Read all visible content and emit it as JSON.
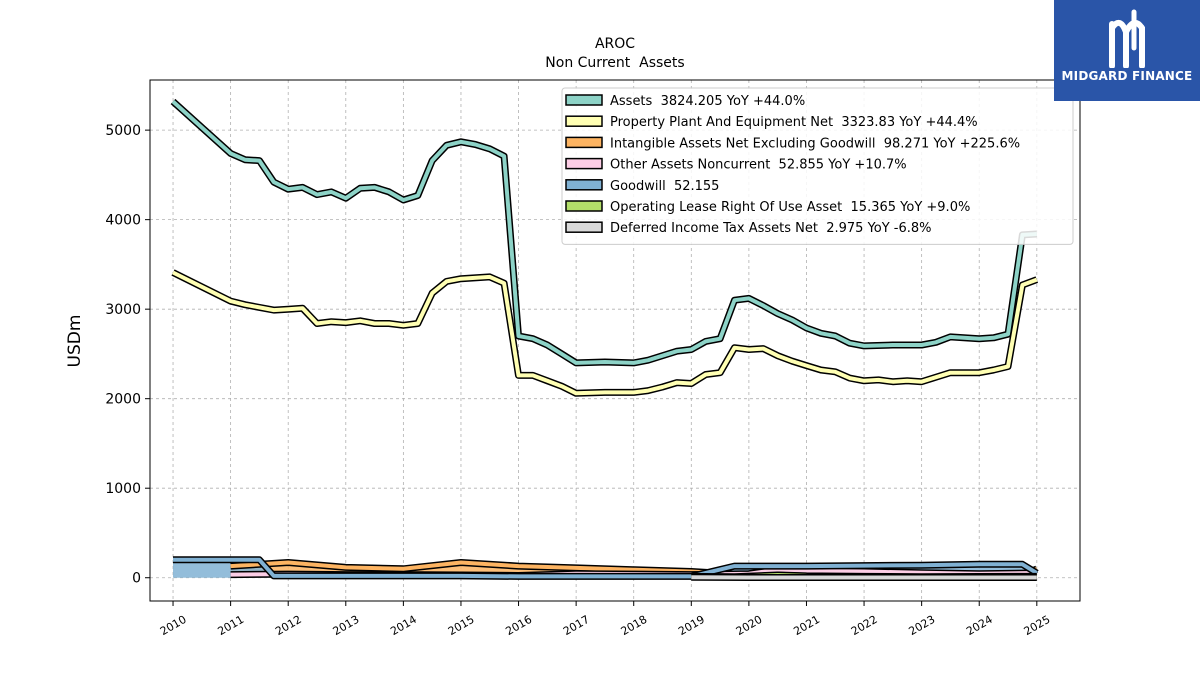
{
  "brand": {
    "logo_text": "MIDGARD FINANCE",
    "logo_color": "#2a55a8"
  },
  "chart_data": {
    "type": "line",
    "title": "AROC",
    "subtitle": "Non Current  Assets",
    "xlabel": "",
    "ylabel": "USDm",
    "xlim": [
      2009.6,
      2025.75
    ],
    "ylim": [
      -260,
      5560
    ],
    "yticks": [
      0,
      1000,
      2000,
      3000,
      4000,
      5000
    ],
    "xticks": [
      2010,
      2011,
      2012,
      2013,
      2014,
      2015,
      2016,
      2017,
      2018,
      2019,
      2020,
      2021,
      2022,
      2023,
      2024,
      2025
    ],
    "grid": true,
    "legend_position": "top-right",
    "series": [
      {
        "name": "Assets",
        "legend": "Assets  3824.205 YoY +44.0%",
        "color": "#8dd3c7",
        "points": [
          [
            2010.0,
            5320
          ],
          [
            2011.0,
            4740
          ],
          [
            2011.25,
            4670
          ],
          [
            2011.5,
            4660
          ],
          [
            2011.75,
            4420
          ],
          [
            2012.0,
            4340
          ],
          [
            2012.25,
            4360
          ],
          [
            2012.5,
            4280
          ],
          [
            2012.75,
            4310
          ],
          [
            2013.0,
            4240
          ],
          [
            2013.25,
            4350
          ],
          [
            2013.5,
            4360
          ],
          [
            2013.75,
            4310
          ],
          [
            2014.0,
            4220
          ],
          [
            2014.25,
            4270
          ],
          [
            2014.5,
            4660
          ],
          [
            2014.75,
            4830
          ],
          [
            2015.0,
            4870
          ],
          [
            2015.25,
            4840
          ],
          [
            2015.5,
            4790
          ],
          [
            2015.75,
            4710
          ],
          [
            2016.0,
            2700
          ],
          [
            2016.25,
            2670
          ],
          [
            2016.5,
            2600
          ],
          [
            2016.75,
            2500
          ],
          [
            2017.0,
            2400
          ],
          [
            2017.5,
            2410
          ],
          [
            2018.0,
            2400
          ],
          [
            2018.25,
            2430
          ],
          [
            2018.5,
            2480
          ],
          [
            2018.75,
            2530
          ],
          [
            2019.0,
            2550
          ],
          [
            2019.25,
            2640
          ],
          [
            2019.5,
            2670
          ],
          [
            2019.75,
            3100
          ],
          [
            2020.0,
            3120
          ],
          [
            2020.25,
            3040
          ],
          [
            2020.5,
            2950
          ],
          [
            2020.75,
            2880
          ],
          [
            2021.0,
            2790
          ],
          [
            2021.25,
            2730
          ],
          [
            2021.5,
            2700
          ],
          [
            2021.75,
            2620
          ],
          [
            2022.0,
            2590
          ],
          [
            2022.5,
            2600
          ],
          [
            2023.0,
            2600
          ],
          [
            2023.25,
            2630
          ],
          [
            2023.5,
            2690
          ],
          [
            2024.0,
            2670
          ],
          [
            2024.25,
            2680
          ],
          [
            2024.5,
            2720
          ],
          [
            2024.75,
            3830
          ],
          [
            2025.0,
            3840
          ]
        ]
      },
      {
        "name": "Property Plant And Equipment Net",
        "legend": "Property Plant And Equipment Net  3323.83 YoY +44.4%",
        "color": "#ffffb3",
        "points": [
          [
            2010.0,
            3410
          ],
          [
            2011.0,
            3090
          ],
          [
            2011.25,
            3050
          ],
          [
            2011.5,
            3020
          ],
          [
            2011.75,
            2990
          ],
          [
            2012.0,
            3000
          ],
          [
            2012.25,
            3010
          ],
          [
            2012.5,
            2840
          ],
          [
            2012.75,
            2860
          ],
          [
            2013.0,
            2850
          ],
          [
            2013.25,
            2870
          ],
          [
            2013.5,
            2840
          ],
          [
            2013.75,
            2840
          ],
          [
            2014.0,
            2820
          ],
          [
            2014.25,
            2840
          ],
          [
            2014.5,
            3180
          ],
          [
            2014.75,
            3310
          ],
          [
            2015.0,
            3340
          ],
          [
            2015.5,
            3360
          ],
          [
            2015.75,
            3290
          ],
          [
            2016.0,
            2260
          ],
          [
            2016.25,
            2260
          ],
          [
            2016.5,
            2200
          ],
          [
            2016.75,
            2140
          ],
          [
            2017.0,
            2060
          ],
          [
            2017.5,
            2070
          ],
          [
            2018.0,
            2070
          ],
          [
            2018.25,
            2090
          ],
          [
            2018.5,
            2130
          ],
          [
            2018.75,
            2180
          ],
          [
            2019.0,
            2170
          ],
          [
            2019.25,
            2270
          ],
          [
            2019.5,
            2290
          ],
          [
            2019.75,
            2570
          ],
          [
            2020.0,
            2550
          ],
          [
            2020.25,
            2560
          ],
          [
            2020.5,
            2480
          ],
          [
            2020.75,
            2420
          ],
          [
            2021.0,
            2370
          ],
          [
            2021.25,
            2320
          ],
          [
            2021.5,
            2300
          ],
          [
            2021.75,
            2230
          ],
          [
            2022.0,
            2200
          ],
          [
            2022.25,
            2210
          ],
          [
            2022.5,
            2190
          ],
          [
            2022.75,
            2200
          ],
          [
            2023.0,
            2190
          ],
          [
            2023.25,
            2240
          ],
          [
            2023.5,
            2290
          ],
          [
            2024.0,
            2290
          ],
          [
            2024.25,
            2320
          ],
          [
            2024.5,
            2360
          ],
          [
            2024.75,
            3270
          ],
          [
            2025.0,
            3330
          ]
        ]
      },
      {
        "name": "Intangible Assets Net Excluding Goodwill",
        "legend": "Intangible Assets Net Excluding Goodwill  98.271 YoY +225.6%",
        "color": "#fdb462",
        "points": [
          [
            2011.0,
            130
          ],
          [
            2012.0,
            170
          ],
          [
            2013.0,
            115
          ],
          [
            2014.0,
            100
          ],
          [
            2015.0,
            170
          ],
          [
            2016.0,
            130
          ],
          [
            2017.0,
            110
          ],
          [
            2018.0,
            90
          ],
          [
            2019.0,
            70
          ],
          [
            2019.75,
            40
          ],
          [
            2020.0,
            30
          ],
          [
            2021.0,
            30
          ],
          [
            2022.0,
            30
          ],
          [
            2023.0,
            30
          ],
          [
            2024.0,
            30
          ],
          [
            2024.75,
            30
          ],
          [
            2025.0,
            98
          ]
        ]
      },
      {
        "name": "Other Assets Noncurrent",
        "legend": "Other Assets Noncurrent  52.855 YoY +10.7%",
        "color": "#fccde5",
        "points": [
          [
            2011.0,
            35
          ],
          [
            2012.0,
            40
          ],
          [
            2013.0,
            35
          ],
          [
            2014.0,
            35
          ],
          [
            2015.0,
            30
          ],
          [
            2016.0,
            25
          ],
          [
            2017.0,
            45
          ],
          [
            2018.0,
            40
          ],
          [
            2019.0,
            35
          ],
          [
            2020.0,
            45
          ],
          [
            2020.5,
            90
          ],
          [
            2021.0,
            80
          ],
          [
            2022.0,
            70
          ],
          [
            2023.0,
            55
          ],
          [
            2024.0,
            45
          ],
          [
            2025.0,
            53
          ]
        ]
      },
      {
        "name": "Goodwill",
        "legend": "Goodwill  52.155",
        "color": "#80b1d3",
        "points": [
          [
            2010.0,
            200
          ],
          [
            2011.0,
            200
          ],
          [
            2011.5,
            200
          ],
          [
            2011.75,
            20
          ],
          [
            2012.0,
            20
          ],
          [
            2015.0,
            20
          ],
          [
            2016.0,
            15
          ],
          [
            2017.0,
            15
          ],
          [
            2018.0,
            15
          ],
          [
            2019.0,
            15
          ],
          [
            2019.75,
            130
          ],
          [
            2020.0,
            130
          ],
          [
            2021.0,
            130
          ],
          [
            2022.0,
            135
          ],
          [
            2023.0,
            140
          ],
          [
            2024.0,
            150
          ],
          [
            2024.75,
            150
          ],
          [
            2025.0,
            52
          ]
        ]
      },
      {
        "name": "Operating Lease Right Of Use Asset",
        "legend": "Operating Lease Right Of Use Asset  15.365 YoY +9.0%",
        "color": "#b3de69",
        "points": [
          [
            2019.0,
            15
          ],
          [
            2019.75,
            10
          ],
          [
            2020.5,
            30
          ],
          [
            2021.0,
            20
          ],
          [
            2022.0,
            15
          ],
          [
            2023.0,
            12
          ],
          [
            2024.0,
            14
          ],
          [
            2025.0,
            15
          ]
        ]
      },
      {
        "name": "Deferred Income Tax Assets Net",
        "legend": "Deferred Income Tax Assets Net  2.975 YoY -6.8%",
        "color": "#d9d9d9",
        "points": [
          [
            2019.0,
            5
          ],
          [
            2020.0,
            3
          ],
          [
            2021.0,
            3
          ],
          [
            2022.0,
            3
          ],
          [
            2023.0,
            3
          ],
          [
            2024.0,
            3
          ],
          [
            2025.0,
            3
          ]
        ]
      }
    ]
  }
}
